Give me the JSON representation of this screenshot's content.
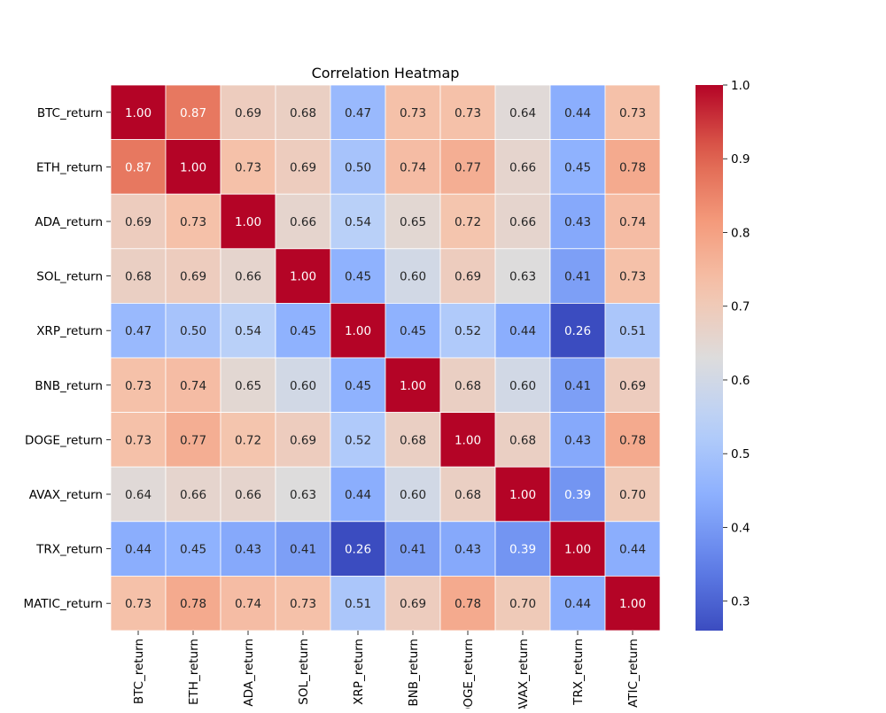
{
  "chart_data": {
    "type": "heatmap",
    "title": "Correlation Heatmap",
    "xlabel": "",
    "ylabel": "",
    "rows": [
      "BTC_return",
      "ETH_return",
      "ADA_return",
      "SOL_return",
      "XRP_return",
      "BNB_return",
      "DOGE_return",
      "AVAX_return",
      "TRX_return",
      "MATIC_return"
    ],
    "columns": [
      "BTC_return",
      "ETH_return",
      "ADA_return",
      "SOL_return",
      "XRP_return",
      "BNB_return",
      "DOGE_return",
      "AVAX_return",
      "TRX_return",
      "MATIC_return"
    ],
    "values": [
      [
        1.0,
        0.87,
        0.69,
        0.68,
        0.47,
        0.73,
        0.73,
        0.64,
        0.44,
        0.73
      ],
      [
        0.87,
        1.0,
        0.73,
        0.69,
        0.5,
        0.74,
        0.77,
        0.66,
        0.45,
        0.78
      ],
      [
        0.69,
        0.73,
        1.0,
        0.66,
        0.54,
        0.65,
        0.72,
        0.66,
        0.43,
        0.74
      ],
      [
        0.68,
        0.69,
        0.66,
        1.0,
        0.45,
        0.6,
        0.69,
        0.63,
        0.41,
        0.73
      ],
      [
        0.47,
        0.5,
        0.54,
        0.45,
        1.0,
        0.45,
        0.52,
        0.44,
        0.26,
        0.51
      ],
      [
        0.73,
        0.74,
        0.65,
        0.6,
        0.45,
        1.0,
        0.68,
        0.6,
        0.41,
        0.69
      ],
      [
        0.73,
        0.77,
        0.72,
        0.69,
        0.52,
        0.68,
        1.0,
        0.68,
        0.43,
        0.78
      ],
      [
        0.64,
        0.66,
        0.66,
        0.63,
        0.44,
        0.6,
        0.68,
        1.0,
        0.39,
        0.7
      ],
      [
        0.44,
        0.45,
        0.43,
        0.41,
        0.26,
        0.41,
        0.43,
        0.39,
        1.0,
        0.44
      ],
      [
        0.73,
        0.78,
        0.74,
        0.73,
        0.51,
        0.69,
        0.78,
        0.7,
        0.44,
        1.0
      ]
    ],
    "value_format": "0.00",
    "colormap": "coolwarm",
    "color_range": [
      0.26,
      1.0
    ],
    "colorbar_ticks": [
      "0.3",
      "0.4",
      "0.5",
      "0.6",
      "0.7",
      "0.8",
      "0.9",
      "1.0"
    ],
    "grid_lines": true,
    "cell_border_color": "#ffffff",
    "colors": {
      "low": "#3b4cc0",
      "mid": "#dddcdc",
      "high": "#b40426",
      "text_dark": "#262626",
      "text_light": "#ffffff"
    }
  }
}
